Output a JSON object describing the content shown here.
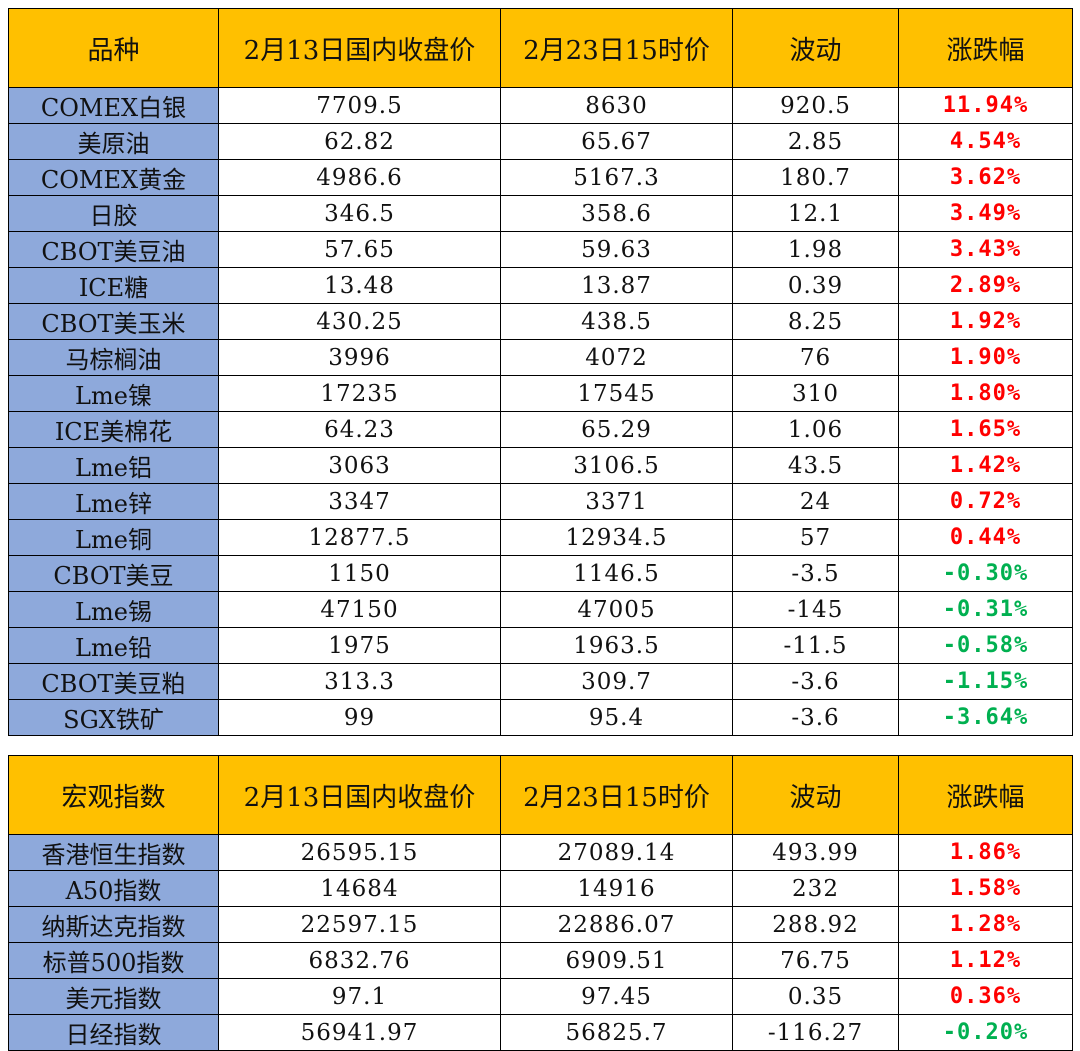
{
  "colors": {
    "header_bg": "#ffc000",
    "name_bg": "#8ea9db",
    "up": "#ff0000",
    "down": "#00b050"
  },
  "commodities": {
    "headers": [
      "品种",
      "2月13日国内收盘价",
      "2月23日15时价",
      "波动",
      "涨跌幅"
    ],
    "rows": [
      {
        "name": "COMEX白银",
        "p1": "7709.5",
        "p2": "8630",
        "diff": "920.5",
        "pct": "11.94%",
        "dir": "up"
      },
      {
        "name": "美原油",
        "p1": "62.82",
        "p2": "65.67",
        "diff": "2.85",
        "pct": "4.54%",
        "dir": "up"
      },
      {
        "name": "COMEX黄金",
        "p1": "4986.6",
        "p2": "5167.3",
        "diff": "180.7",
        "pct": "3.62%",
        "dir": "up"
      },
      {
        "name": "日胶",
        "p1": "346.5",
        "p2": "358.6",
        "diff": "12.1",
        "pct": "3.49%",
        "dir": "up"
      },
      {
        "name": "CBOT美豆油",
        "p1": "57.65",
        "p2": "59.63",
        "diff": "1.98",
        "pct": "3.43%",
        "dir": "up"
      },
      {
        "name": "ICE糖",
        "p1": "13.48",
        "p2": "13.87",
        "diff": "0.39",
        "pct": "2.89%",
        "dir": "up"
      },
      {
        "name": "CBOT美玉米",
        "p1": "430.25",
        "p2": "438.5",
        "diff": "8.25",
        "pct": "1.92%",
        "dir": "up"
      },
      {
        "name": "马棕榈油",
        "p1": "3996",
        "p2": "4072",
        "diff": "76",
        "pct": "1.90%",
        "dir": "up"
      },
      {
        "name": "Lme镍",
        "p1": "17235",
        "p2": "17545",
        "diff": "310",
        "pct": "1.80%",
        "dir": "up"
      },
      {
        "name": "ICE美棉花",
        "p1": "64.23",
        "p2": "65.29",
        "diff": "1.06",
        "pct": "1.65%",
        "dir": "up"
      },
      {
        "name": "Lme铝",
        "p1": "3063",
        "p2": "3106.5",
        "diff": "43.5",
        "pct": "1.42%",
        "dir": "up"
      },
      {
        "name": "Lme锌",
        "p1": "3347",
        "p2": "3371",
        "diff": "24",
        "pct": "0.72%",
        "dir": "up"
      },
      {
        "name": "Lme铜",
        "p1": "12877.5",
        "p2": "12934.5",
        "diff": "57",
        "pct": "0.44%",
        "dir": "up"
      },
      {
        "name": "CBOT美豆",
        "p1": "1150",
        "p2": "1146.5",
        "diff": "-3.5",
        "pct": "-0.30%",
        "dir": "down"
      },
      {
        "name": "Lme锡",
        "p1": "47150",
        "p2": "47005",
        "diff": "-145",
        "pct": "-0.31%",
        "dir": "down"
      },
      {
        "name": "Lme铅",
        "p1": "1975",
        "p2": "1963.5",
        "diff": "-11.5",
        "pct": "-0.58%",
        "dir": "down"
      },
      {
        "name": "CBOT美豆粕",
        "p1": "313.3",
        "p2": "309.7",
        "diff": "-3.6",
        "pct": "-1.15%",
        "dir": "down"
      },
      {
        "name": "SGX铁矿",
        "p1": "99",
        "p2": "95.4",
        "diff": "-3.6",
        "pct": "-3.64%",
        "dir": "down"
      }
    ]
  },
  "macro": {
    "headers": [
      "宏观指数",
      "2月13日国内收盘价",
      "2月23日15时价",
      "波动",
      "涨跌幅"
    ],
    "rows": [
      {
        "name": "香港恒生指数",
        "p1": "26595.15",
        "p2": "27089.14",
        "diff": "493.99",
        "pct": "1.86%",
        "dir": "up"
      },
      {
        "name": "A50指数",
        "p1": "14684",
        "p2": "14916",
        "diff": "232",
        "pct": "1.58%",
        "dir": "up"
      },
      {
        "name": "纳斯达克指数",
        "p1": "22597.15",
        "p2": "22886.07",
        "diff": "288.92",
        "pct": "1.28%",
        "dir": "up"
      },
      {
        "name": "标普500指数",
        "p1": "6832.76",
        "p2": "6909.51",
        "diff": "76.75",
        "pct": "1.12%",
        "dir": "up"
      },
      {
        "name": "美元指数",
        "p1": "97.1",
        "p2": "97.45",
        "diff": "0.35",
        "pct": "0.36%",
        "dir": "up"
      },
      {
        "name": "日经指数",
        "p1": "56941.97",
        "p2": "56825.7",
        "diff": "-116.27",
        "pct": "-0.20%",
        "dir": "down"
      }
    ]
  }
}
